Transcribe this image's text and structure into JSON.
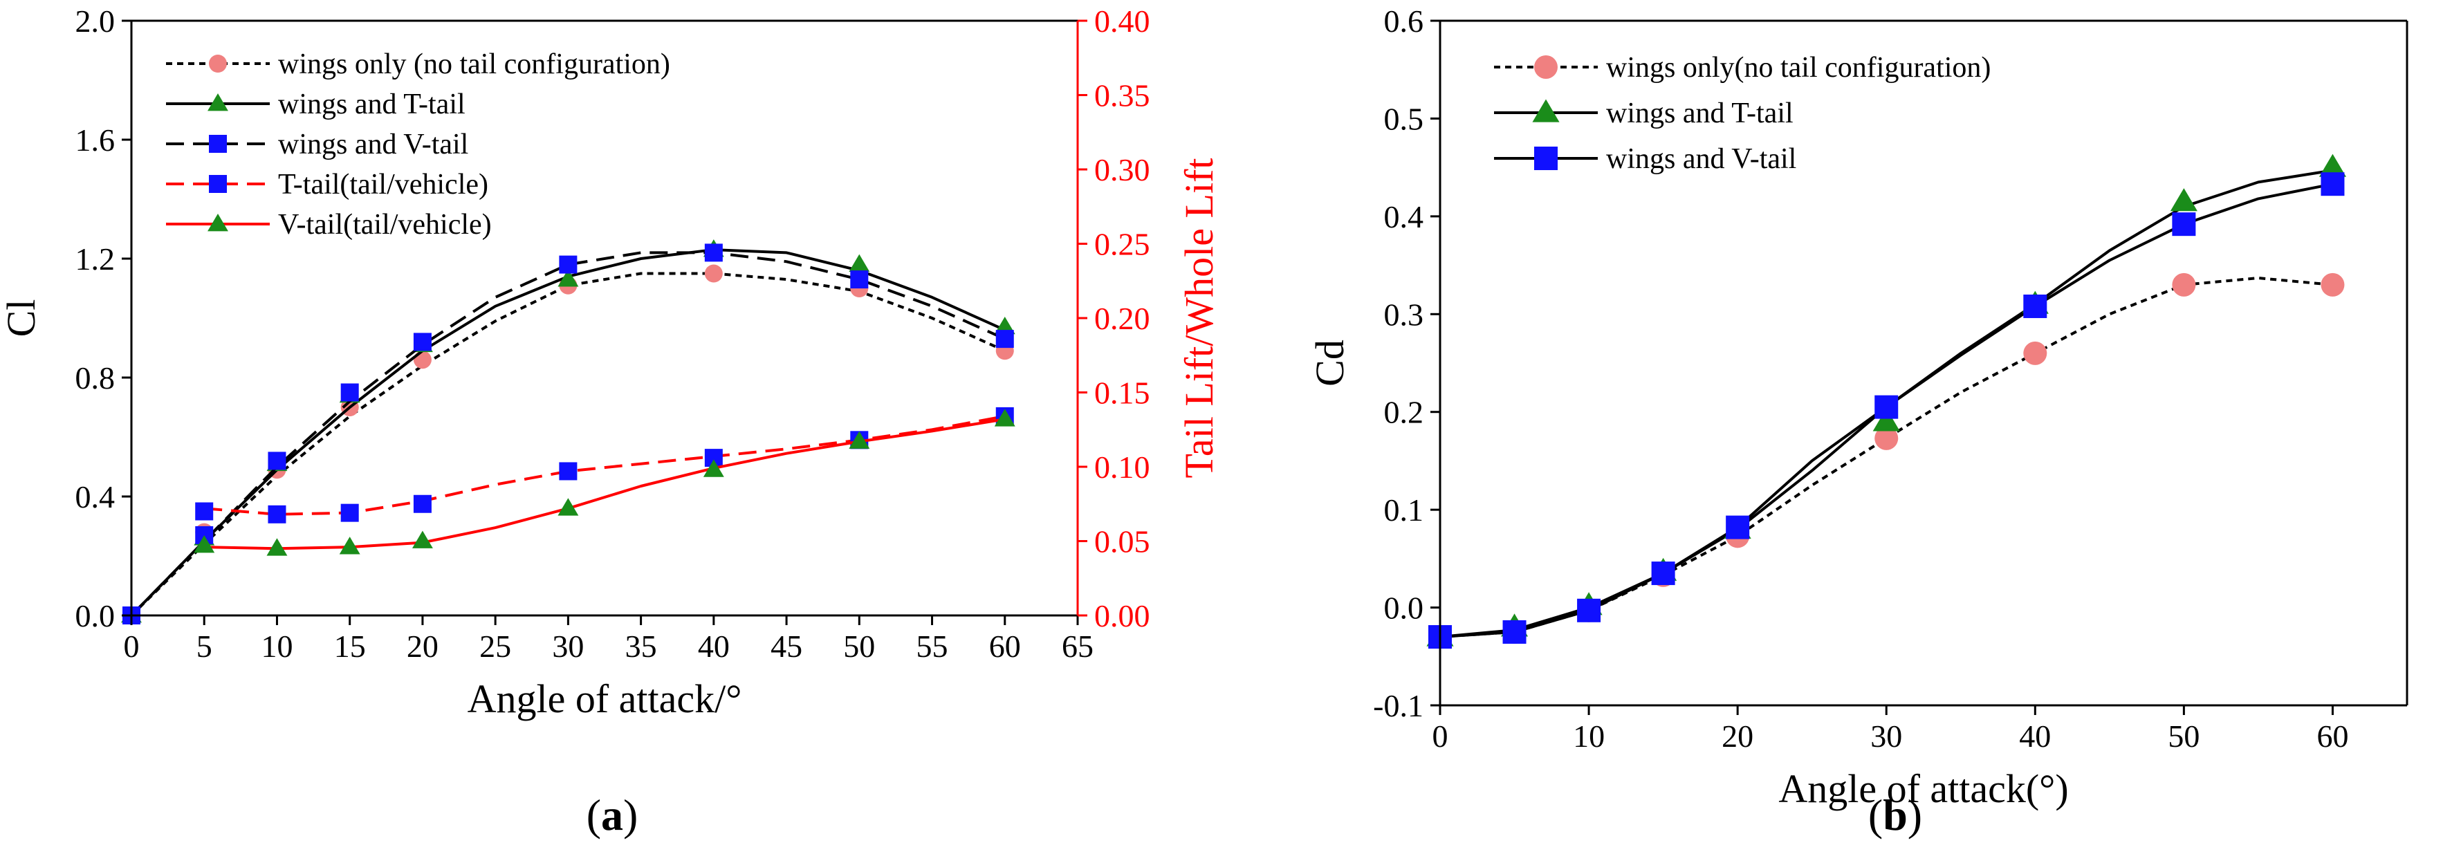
{
  "figure": {
    "panel_a_label_open": "(",
    "panel_a_label_letter": "a",
    "panel_a_label_close": ")",
    "panel_b_label_open": "(",
    "panel_b_label_letter": "b",
    "panel_b_label_close": ")"
  },
  "colors": {
    "black": "#000000",
    "red": "#ff0000",
    "green": "#1a8c1a",
    "blue": "#1010ff",
    "salmon": "#f08080"
  },
  "chart_data": [
    {
      "id": "a",
      "type": "line",
      "xlabel": "Angle of attack/°",
      "ylabel": "Cl",
      "y2label": "Tail Lift/Whole Lift",
      "xlim": [
        0,
        65
      ],
      "ylim": [
        0,
        2.0
      ],
      "y2lim": [
        0,
        0.4
      ],
      "xticks": [
        "0",
        "5",
        "10",
        "15",
        "20",
        "25",
        "30",
        "35",
        "40",
        "45",
        "50",
        "55",
        "60",
        "65"
      ],
      "xtick_values": [
        0,
        5,
        10,
        15,
        20,
        25,
        30,
        35,
        40,
        45,
        50,
        55,
        60,
        65
      ],
      "yticks": [
        "0.0",
        "0.4",
        "0.8",
        "1.2",
        "1.6",
        "2.0"
      ],
      "ytick_values": [
        0,
        0.4,
        0.8,
        1.2,
        1.6,
        2.0
      ],
      "y2ticks": [
        "0.00",
        "0.05",
        "0.10",
        "0.15",
        "0.20",
        "0.25",
        "0.30",
        "0.35",
        "0.40"
      ],
      "y2tick_values": [
        0,
        0.05,
        0.1,
        0.15,
        0.2,
        0.25,
        0.3,
        0.35,
        0.4
      ],
      "legend_position": "top-left",
      "series": [
        {
          "name": "wings only (no tail configuration)",
          "axis": "left",
          "color": "salmon",
          "line_color": "black",
          "dash": "dotted",
          "marker": "circle",
          "x": [
            0,
            5,
            10,
            15,
            20,
            30,
            40,
            50,
            60
          ],
          "values": [
            0.0,
            0.28,
            0.49,
            0.7,
            0.86,
            1.11,
            1.15,
            1.1,
            0.89
          ],
          "curve_x": [
            0,
            5,
            10,
            15,
            20,
            25,
            30,
            35,
            40,
            45,
            50,
            55,
            60
          ],
          "curve_y": [
            0.0,
            0.24,
            0.47,
            0.67,
            0.84,
            0.99,
            1.11,
            1.15,
            1.15,
            1.13,
            1.09,
            1.0,
            0.89
          ]
        },
        {
          "name": "wings and T-tail",
          "axis": "left",
          "color": "green",
          "line_color": "black",
          "dash": "solid",
          "marker": "triangle",
          "x": [
            0,
            5,
            10,
            15,
            20,
            30,
            40,
            50,
            60
          ],
          "values": [
            0.0,
            0.26,
            0.51,
            0.74,
            0.91,
            1.13,
            1.23,
            1.18,
            0.97
          ],
          "curve_x": [
            0,
            5,
            10,
            15,
            20,
            25,
            30,
            35,
            40,
            45,
            50,
            55,
            60
          ],
          "curve_y": [
            0.0,
            0.25,
            0.49,
            0.7,
            0.89,
            1.04,
            1.14,
            1.2,
            1.23,
            1.22,
            1.16,
            1.07,
            0.96
          ]
        },
        {
          "name": "wings and V-tail",
          "axis": "left",
          "color": "blue",
          "line_color": "black",
          "dash": "dashed",
          "marker": "square",
          "x": [
            0,
            5,
            10,
            15,
            20,
            30,
            40,
            50,
            60
          ],
          "values": [
            0.0,
            0.27,
            0.52,
            0.75,
            0.92,
            1.18,
            1.22,
            1.13,
            0.93
          ],
          "curve_x": [
            0,
            5,
            10,
            15,
            20,
            25,
            30,
            35,
            40,
            45,
            50,
            55,
            60
          ],
          "curve_y": [
            0.0,
            0.25,
            0.5,
            0.72,
            0.91,
            1.07,
            1.18,
            1.22,
            1.22,
            1.19,
            1.13,
            1.04,
            0.93
          ]
        },
        {
          "name": "T-tail(tail/vehicle)",
          "axis": "right",
          "color": "blue",
          "line_color": "red",
          "dash": "dashed",
          "marker": "square",
          "x": [
            5,
            10,
            15,
            20,
            30,
            40,
            50,
            60
          ],
          "values": [
            0.07,
            0.068,
            0.069,
            0.075,
            0.097,
            0.106,
            0.118,
            0.134
          ],
          "curve_x": [
            5,
            10,
            15,
            20,
            25,
            30,
            35,
            40,
            45,
            50,
            55,
            60
          ],
          "curve_y": [
            0.072,
            0.068,
            0.069,
            0.077,
            0.088,
            0.097,
            0.102,
            0.107,
            0.112,
            0.118,
            0.125,
            0.134
          ]
        },
        {
          "name": "V-tail(tail/vehicle)",
          "axis": "right",
          "color": "green",
          "line_color": "red",
          "dash": "solid",
          "marker": "triangle",
          "x": [
            5,
            10,
            15,
            20,
            30,
            40,
            50,
            60
          ],
          "values": [
            0.047,
            0.045,
            0.046,
            0.05,
            0.072,
            0.098,
            0.117,
            0.132
          ],
          "curve_x": [
            5,
            10,
            15,
            20,
            25,
            30,
            35,
            40,
            45,
            50,
            55,
            60
          ],
          "curve_y": [
            0.046,
            0.045,
            0.046,
            0.049,
            0.059,
            0.072,
            0.087,
            0.099,
            0.109,
            0.117,
            0.124,
            0.132
          ]
        }
      ]
    },
    {
      "id": "b",
      "type": "line",
      "xlabel": "Angle of attack(°)",
      "ylabel": "Cd",
      "xlim": [
        0,
        65
      ],
      "ylim": [
        -0.1,
        0.6
      ],
      "xticks": [
        "0",
        "10",
        "20",
        "30",
        "40",
        "50",
        "60"
      ],
      "xtick_values": [
        0,
        10,
        20,
        30,
        40,
        50,
        60
      ],
      "yticks": [
        "-0.1",
        "0.0",
        "0.1",
        "0.2",
        "0.3",
        "0.4",
        "0.5",
        "0.6"
      ],
      "ytick_values": [
        -0.1,
        0.0,
        0.1,
        0.2,
        0.3,
        0.4,
        0.5,
        0.6
      ],
      "legend_position": "top-left",
      "series": [
        {
          "name": "wings only(no tail configuration)",
          "color": "salmon",
          "line_color": "black",
          "dash": "dotted",
          "marker": "circle",
          "x": [
            0,
            5,
            10,
            15,
            20,
            30,
            40,
            50,
            60
          ],
          "values": [
            -0.03,
            -0.025,
            -0.003,
            0.033,
            0.073,
            0.173,
            0.26,
            0.33,
            0.33
          ],
          "curve_x": [
            0,
            5,
            10,
            15,
            20,
            25,
            30,
            35,
            40,
            45,
            50,
            55,
            60
          ],
          "curve_y": [
            -0.03,
            -0.025,
            -0.003,
            0.033,
            0.073,
            0.125,
            0.173,
            0.22,
            0.26,
            0.3,
            0.33,
            0.337,
            0.33
          ]
        },
        {
          "name": "wings and T-tail",
          "color": "green",
          "line_color": "black",
          "dash": "solid",
          "marker": "triangle",
          "x": [
            0,
            5,
            10,
            15,
            20,
            30,
            40,
            50,
            60
          ],
          "values": [
            -0.03,
            -0.02,
            0.002,
            0.037,
            0.08,
            0.19,
            0.31,
            0.415,
            0.45
          ],
          "curve_x": [
            0,
            5,
            10,
            15,
            20,
            25,
            30,
            35,
            40,
            45,
            50,
            55,
            60
          ],
          "curve_y": [
            -0.03,
            -0.023,
            0.0,
            0.035,
            0.08,
            0.14,
            0.205,
            0.26,
            0.31,
            0.365,
            0.41,
            0.435,
            0.447
          ]
        },
        {
          "name": "wings and V-tail",
          "color": "blue",
          "line_color": "black",
          "dash": "solid",
          "marker": "square",
          "x": [
            0,
            5,
            10,
            15,
            20,
            30,
            40,
            50,
            60
          ],
          "values": [
            -0.03,
            -0.025,
            -0.003,
            0.035,
            0.082,
            0.205,
            0.308,
            0.392,
            0.433
          ],
          "curve_x": [
            0,
            5,
            10,
            15,
            20,
            25,
            30,
            35,
            40,
            45,
            50,
            55,
            60
          ],
          "curve_y": [
            -0.03,
            -0.025,
            -0.003,
            0.035,
            0.082,
            0.15,
            0.205,
            0.258,
            0.308,
            0.355,
            0.392,
            0.418,
            0.433
          ]
        }
      ]
    }
  ]
}
